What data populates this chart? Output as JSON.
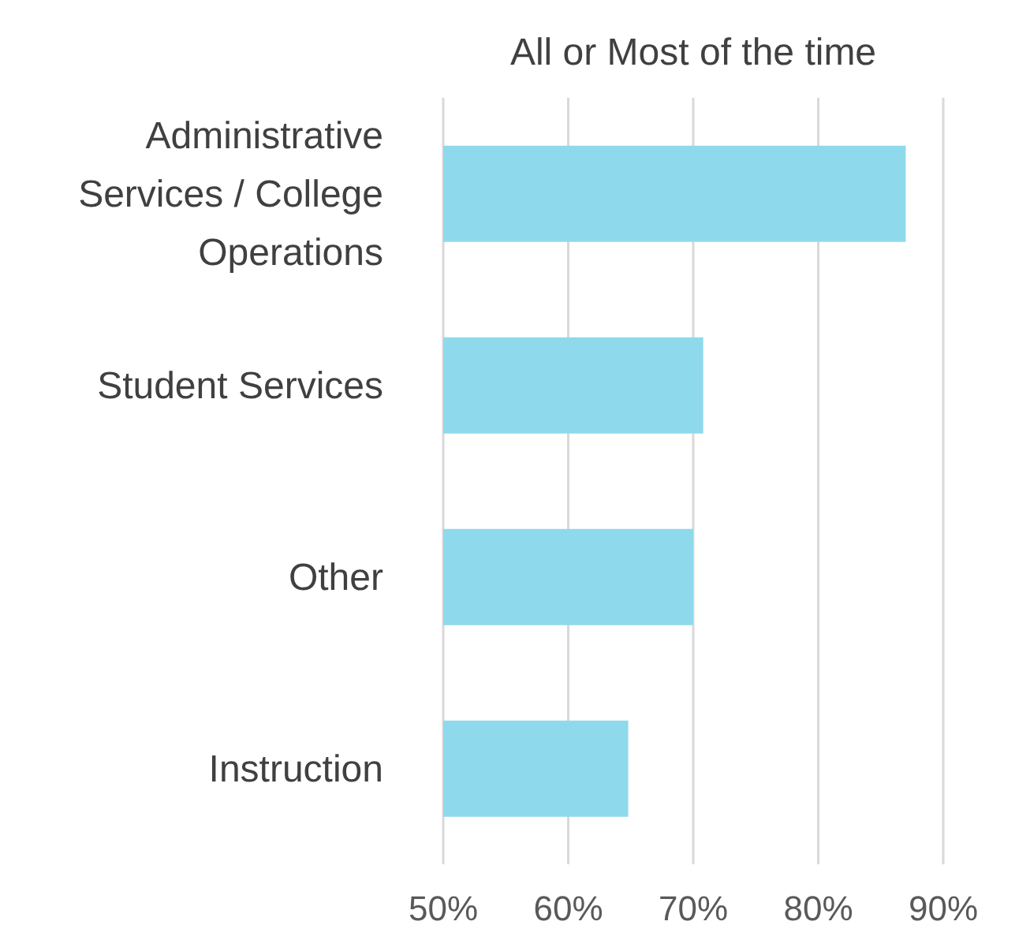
{
  "chart_data": {
    "type": "bar",
    "orientation": "horizontal",
    "title": "All or Most of the time",
    "categories": [
      "Administrative Services / College Operations",
      "Student Services",
      "Other",
      "Instruction"
    ],
    "values": [
      87,
      70.8,
      70,
      64.8
    ],
    "color": "#8fd9ec",
    "xlim": [
      50,
      90
    ],
    "xticks": [
      {
        "value": 50,
        "label": "50%"
      },
      {
        "value": 60,
        "label": "60%"
      },
      {
        "value": 70,
        "label": "70%"
      },
      {
        "value": 80,
        "label": "80%"
      },
      {
        "value": 90,
        "label": "90%"
      }
    ],
    "grid": "x",
    "legend": false
  }
}
